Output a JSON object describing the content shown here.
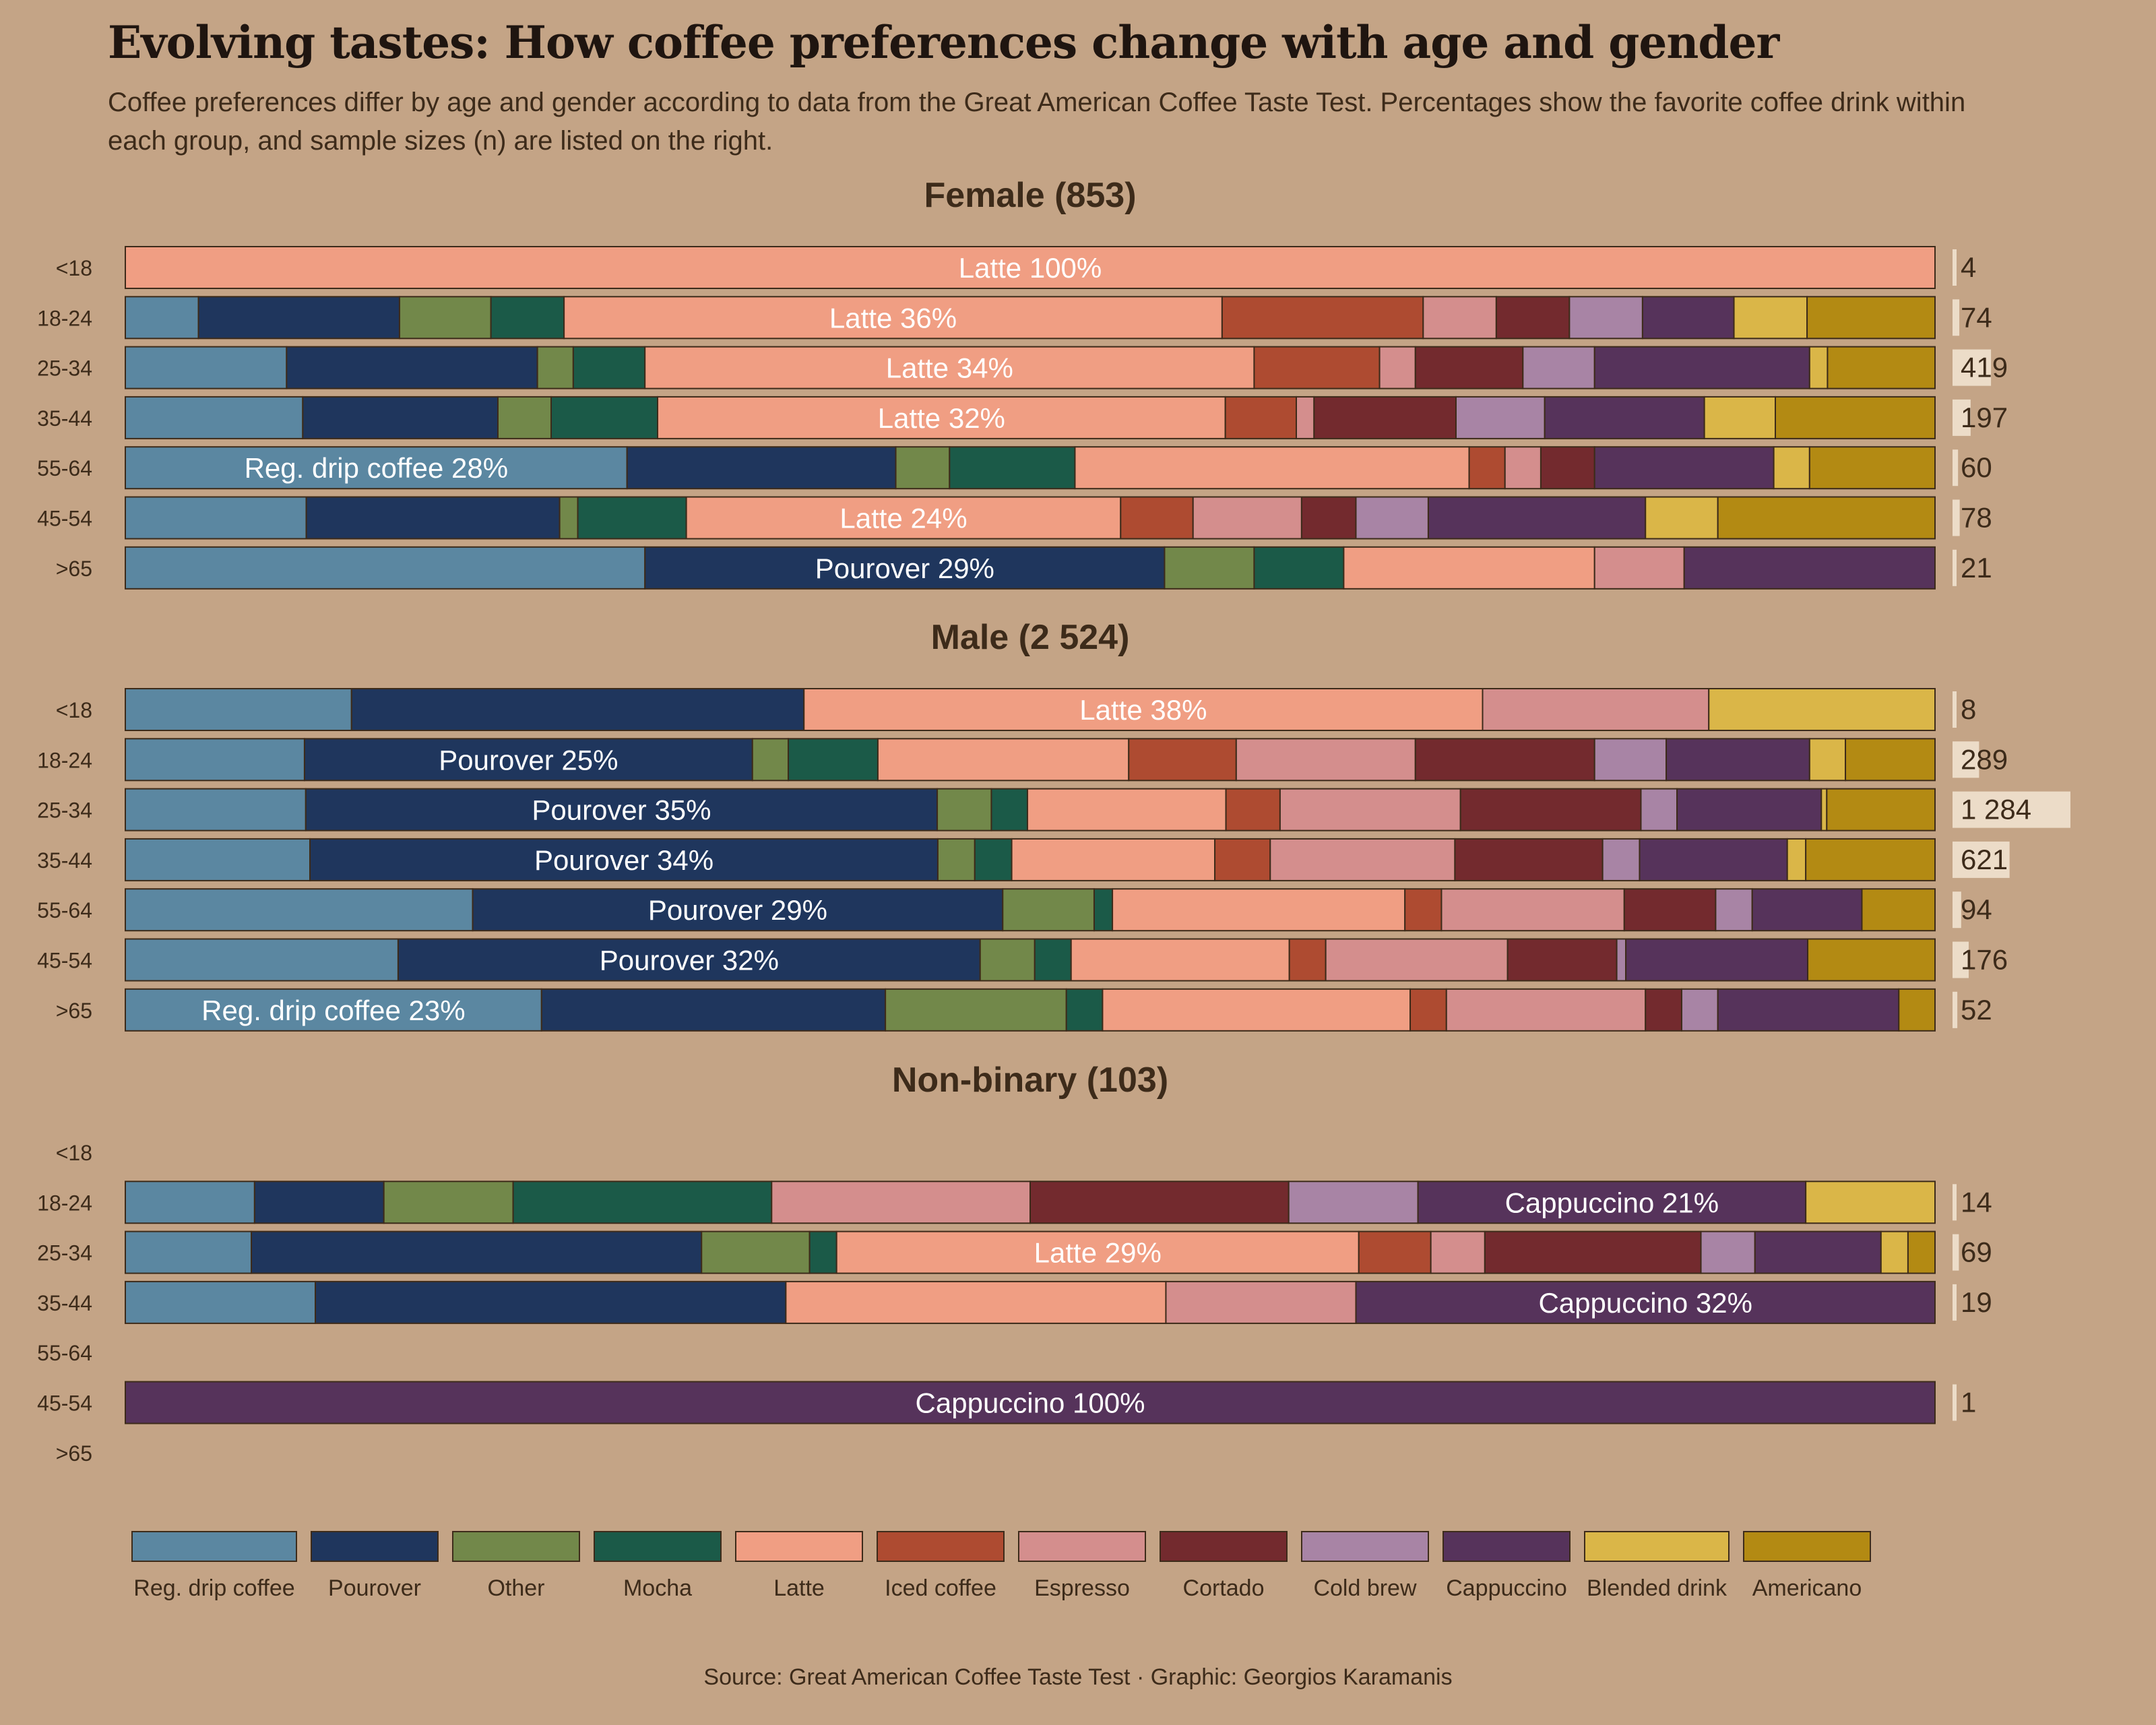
{
  "title": "Evolving tastes: How coffee preferences change with age and gender",
  "subtitle": "Coffee preferences differ by age and gender according to data from the Great American Coffee Taste Test. Percentages show the favorite coffee drink within each group, and sample sizes (n) are listed on the right.",
  "source": "Source: Great American Coffee Taste Test · Graphic: Georgios Karamanis",
  "chart_data": {
    "type": "bar",
    "stacked": true,
    "normalized_percent": true,
    "drinks": [
      "Reg. drip coffee",
      "Pourover",
      "Other",
      "Mocha",
      "Latte",
      "Iced coffee",
      "Espresso",
      "Cortado",
      "Cold brew",
      "Cappuccino",
      "Blended drink",
      "Americano"
    ],
    "colors": {
      "Reg. drip coffee": "#5b87a1",
      "Pourover": "#1f365d",
      "Other": "#72884a",
      "Mocha": "#1b5a48",
      "Latte": "#f09e83",
      "Iced coffee": "#ae4b31",
      "Espresso": "#d48e8d",
      "Cortado": "#732a2e",
      "Cold brew": "#a884a5",
      "Cappuccino": "#56335b",
      "Blended drink": "#dab648",
      "Americano": "#b38a13"
    },
    "panels": [
      {
        "label": "Female (853)",
        "rows": [
          {
            "age": "<18",
            "n": "4",
            "values": [
              0,
              0,
              0,
              0,
              100,
              0,
              0,
              0,
              0,
              0,
              0,
              0
            ],
            "label": "Latte 100%"
          },
          {
            "age": "18-24",
            "n": "74",
            "values": [
              4,
              11,
              5,
              4,
              36,
              11,
              4,
              4,
              4,
              5,
              4,
              7
            ],
            "label": "Latte 36%"
          },
          {
            "age": "25-34",
            "n": "419",
            "values": [
              9,
              14,
              2,
              4,
              34,
              7,
              2,
              6,
              4,
              12,
              1,
              6
            ],
            "label": "Latte 34%"
          },
          {
            "age": "35-44",
            "n": "197",
            "values": [
              10,
              11,
              3,
              6,
              32,
              4,
              1,
              8,
              5,
              9,
              4,
              9
            ],
            "label": "Latte 32%"
          },
          {
            "age": "55-64",
            "n": "60",
            "values": [
              28,
              15,
              3,
              7,
              22,
              2,
              2,
              3,
              0,
              10,
              2,
              7
            ],
            "label": "Reg. drip coffee 28%"
          },
          {
            "age": "45-54",
            "n": "78",
            "values": [
              10,
              14,
              1,
              6,
              24,
              4,
              6,
              3,
              4,
              12,
              4,
              12
            ],
            "label": "Latte 24%"
          },
          {
            "age": ">65",
            "n": "21",
            "values": [
              29,
              29,
              5,
              5,
              14,
              0,
              5,
              0,
              0,
              14,
              0,
              0
            ],
            "label": "Pourover 29%",
            "label_index": 1
          }
        ]
      },
      {
        "label": "Male (2 524)",
        "rows": [
          {
            "age": "<18",
            "n": "8",
            "values": [
              12.5,
              25,
              0,
              0,
              37.5,
              0,
              12.5,
              0,
              0,
              0,
              12.5,
              0
            ],
            "label": "Latte 38%"
          },
          {
            "age": "18-24",
            "n": "289",
            "values": [
              10,
              25,
              2,
              5,
              14,
              6,
              10,
              10,
              4,
              8,
              2,
              5
            ],
            "label": "Pourover 25%"
          },
          {
            "age": "25-34",
            "n": "1 284",
            "values": [
              10,
              35,
              3,
              2,
              11,
              3,
              10,
              10,
              2,
              8,
              0.3,
              6
            ],
            "label": "Pourover 35%"
          },
          {
            "age": "35-44",
            "n": "621",
            "values": [
              10,
              34,
              2,
              2,
              11,
              3,
              10,
              8,
              2,
              8,
              1,
              7
            ],
            "label": "Pourover 34%"
          },
          {
            "age": "55-64",
            "n": "94",
            "values": [
              19,
              29,
              5,
              1,
              16,
              2,
              10,
              5,
              2,
              6,
              0,
              4
            ],
            "label": "Pourover 29%"
          },
          {
            "age": "45-54",
            "n": "176",
            "values": [
              15,
              32,
              3,
              2,
              12,
              2,
              10,
              6,
              0.5,
              10,
              0,
              7
            ],
            "label": "Pourover 32%"
          },
          {
            "age": ">65",
            "n": "52",
            "values": [
              23,
              19,
              10,
              2,
              17,
              2,
              11,
              2,
              2,
              10,
              0,
              2
            ],
            "label": "Reg. drip coffee 23%"
          }
        ]
      },
      {
        "label": "Non-binary (103)",
        "rows": [
          {
            "age": "<18",
            "n": "",
            "values": []
          },
          {
            "age": "18-24",
            "n": "14",
            "values": [
              7,
              7,
              7,
              14,
              0,
              0,
              14,
              14,
              7,
              21,
              7,
              0
            ],
            "label": "Cappuccino 21%",
            "label_index": 9
          },
          {
            "age": "25-34",
            "n": "69",
            "values": [
              7,
              25,
              6,
              1.5,
              29,
              4,
              3,
              12,
              3,
              7,
              1.5,
              1.5
            ],
            "label": "Latte 29%"
          },
          {
            "age": "35-44",
            "n": "19",
            "values": [
              10.5,
              26,
              0,
              0,
              21,
              0,
              10.5,
              0,
              0,
              32,
              0,
              0
            ],
            "label": "Cappuccino 32%"
          },
          {
            "age": "55-64",
            "n": "",
            "values": []
          },
          {
            "age": "45-54",
            "n": "1",
            "values": [
              0,
              0,
              0,
              0,
              0,
              0,
              0,
              0,
              0,
              100,
              0,
              0
            ],
            "label": "Cappuccino 100%"
          },
          {
            "age": ">65",
            "n": "",
            "values": []
          }
        ]
      }
    ]
  }
}
